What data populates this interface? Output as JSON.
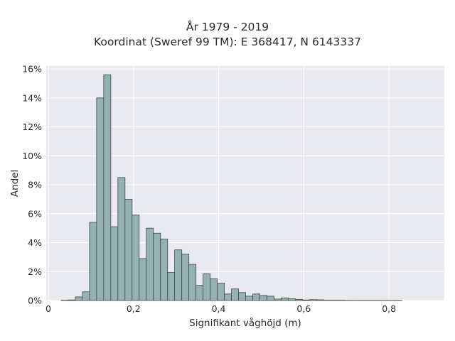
{
  "chart_data": {
    "type": "bar",
    "title_line1": "År 1979 - 2019",
    "title_line2": "Koordinat (Sweref 99 TM): E 368417, N 6143337",
    "xlabel": "Signifikant våghöjd (m)",
    "ylabel": "Andel",
    "xlim": [
      -0.005,
      0.93
    ],
    "ylim": [
      0,
      16.2
    ],
    "x_ticks": [
      {
        "value": 0,
        "label": "0"
      },
      {
        "value": 0.2,
        "label": "0,2"
      },
      {
        "value": 0.4,
        "label": "0,4"
      },
      {
        "value": 0.6,
        "label": "0,6"
      },
      {
        "value": 0.8,
        "label": "0,8"
      }
    ],
    "y_ticks": [
      {
        "value": 0,
        "label": "0%"
      },
      {
        "value": 2,
        "label": "2%"
      },
      {
        "value": 4,
        "label": "4%"
      },
      {
        "value": 6,
        "label": "6%"
      },
      {
        "value": 8,
        "label": "8%"
      },
      {
        "value": 10,
        "label": "10%"
      },
      {
        "value": 12,
        "label": "12%"
      },
      {
        "value": 14,
        "label": "14%"
      },
      {
        "value": 16,
        "label": "16%"
      }
    ],
    "bin_start": 0.03,
    "bin_width": 0.01667,
    "values": [
      0.02,
      0.04,
      0.25,
      0.6,
      5.4,
      14.0,
      15.6,
      5.1,
      8.5,
      7.0,
      5.9,
      2.9,
      5.0,
      4.65,
      4.25,
      1.95,
      3.5,
      3.2,
      2.5,
      1.05,
      1.85,
      1.5,
      1.2,
      0.45,
      0.8,
      0.55,
      0.3,
      0.45,
      0.35,
      0.3,
      0.1,
      0.18,
      0.12,
      0.08,
      0.04,
      0.06,
      0.05,
      0.02,
      0.02,
      0.02,
      0.01,
      0.01,
      0.01,
      0.01,
      0.01,
      0.01,
      0.01,
      0.01
    ],
    "grid": true,
    "colors": {
      "bar_fill": "#95b1b0",
      "bar_edge": "#3c4a4a",
      "plot_bg": "#e9e9f0",
      "grid": "#ffffff"
    }
  }
}
